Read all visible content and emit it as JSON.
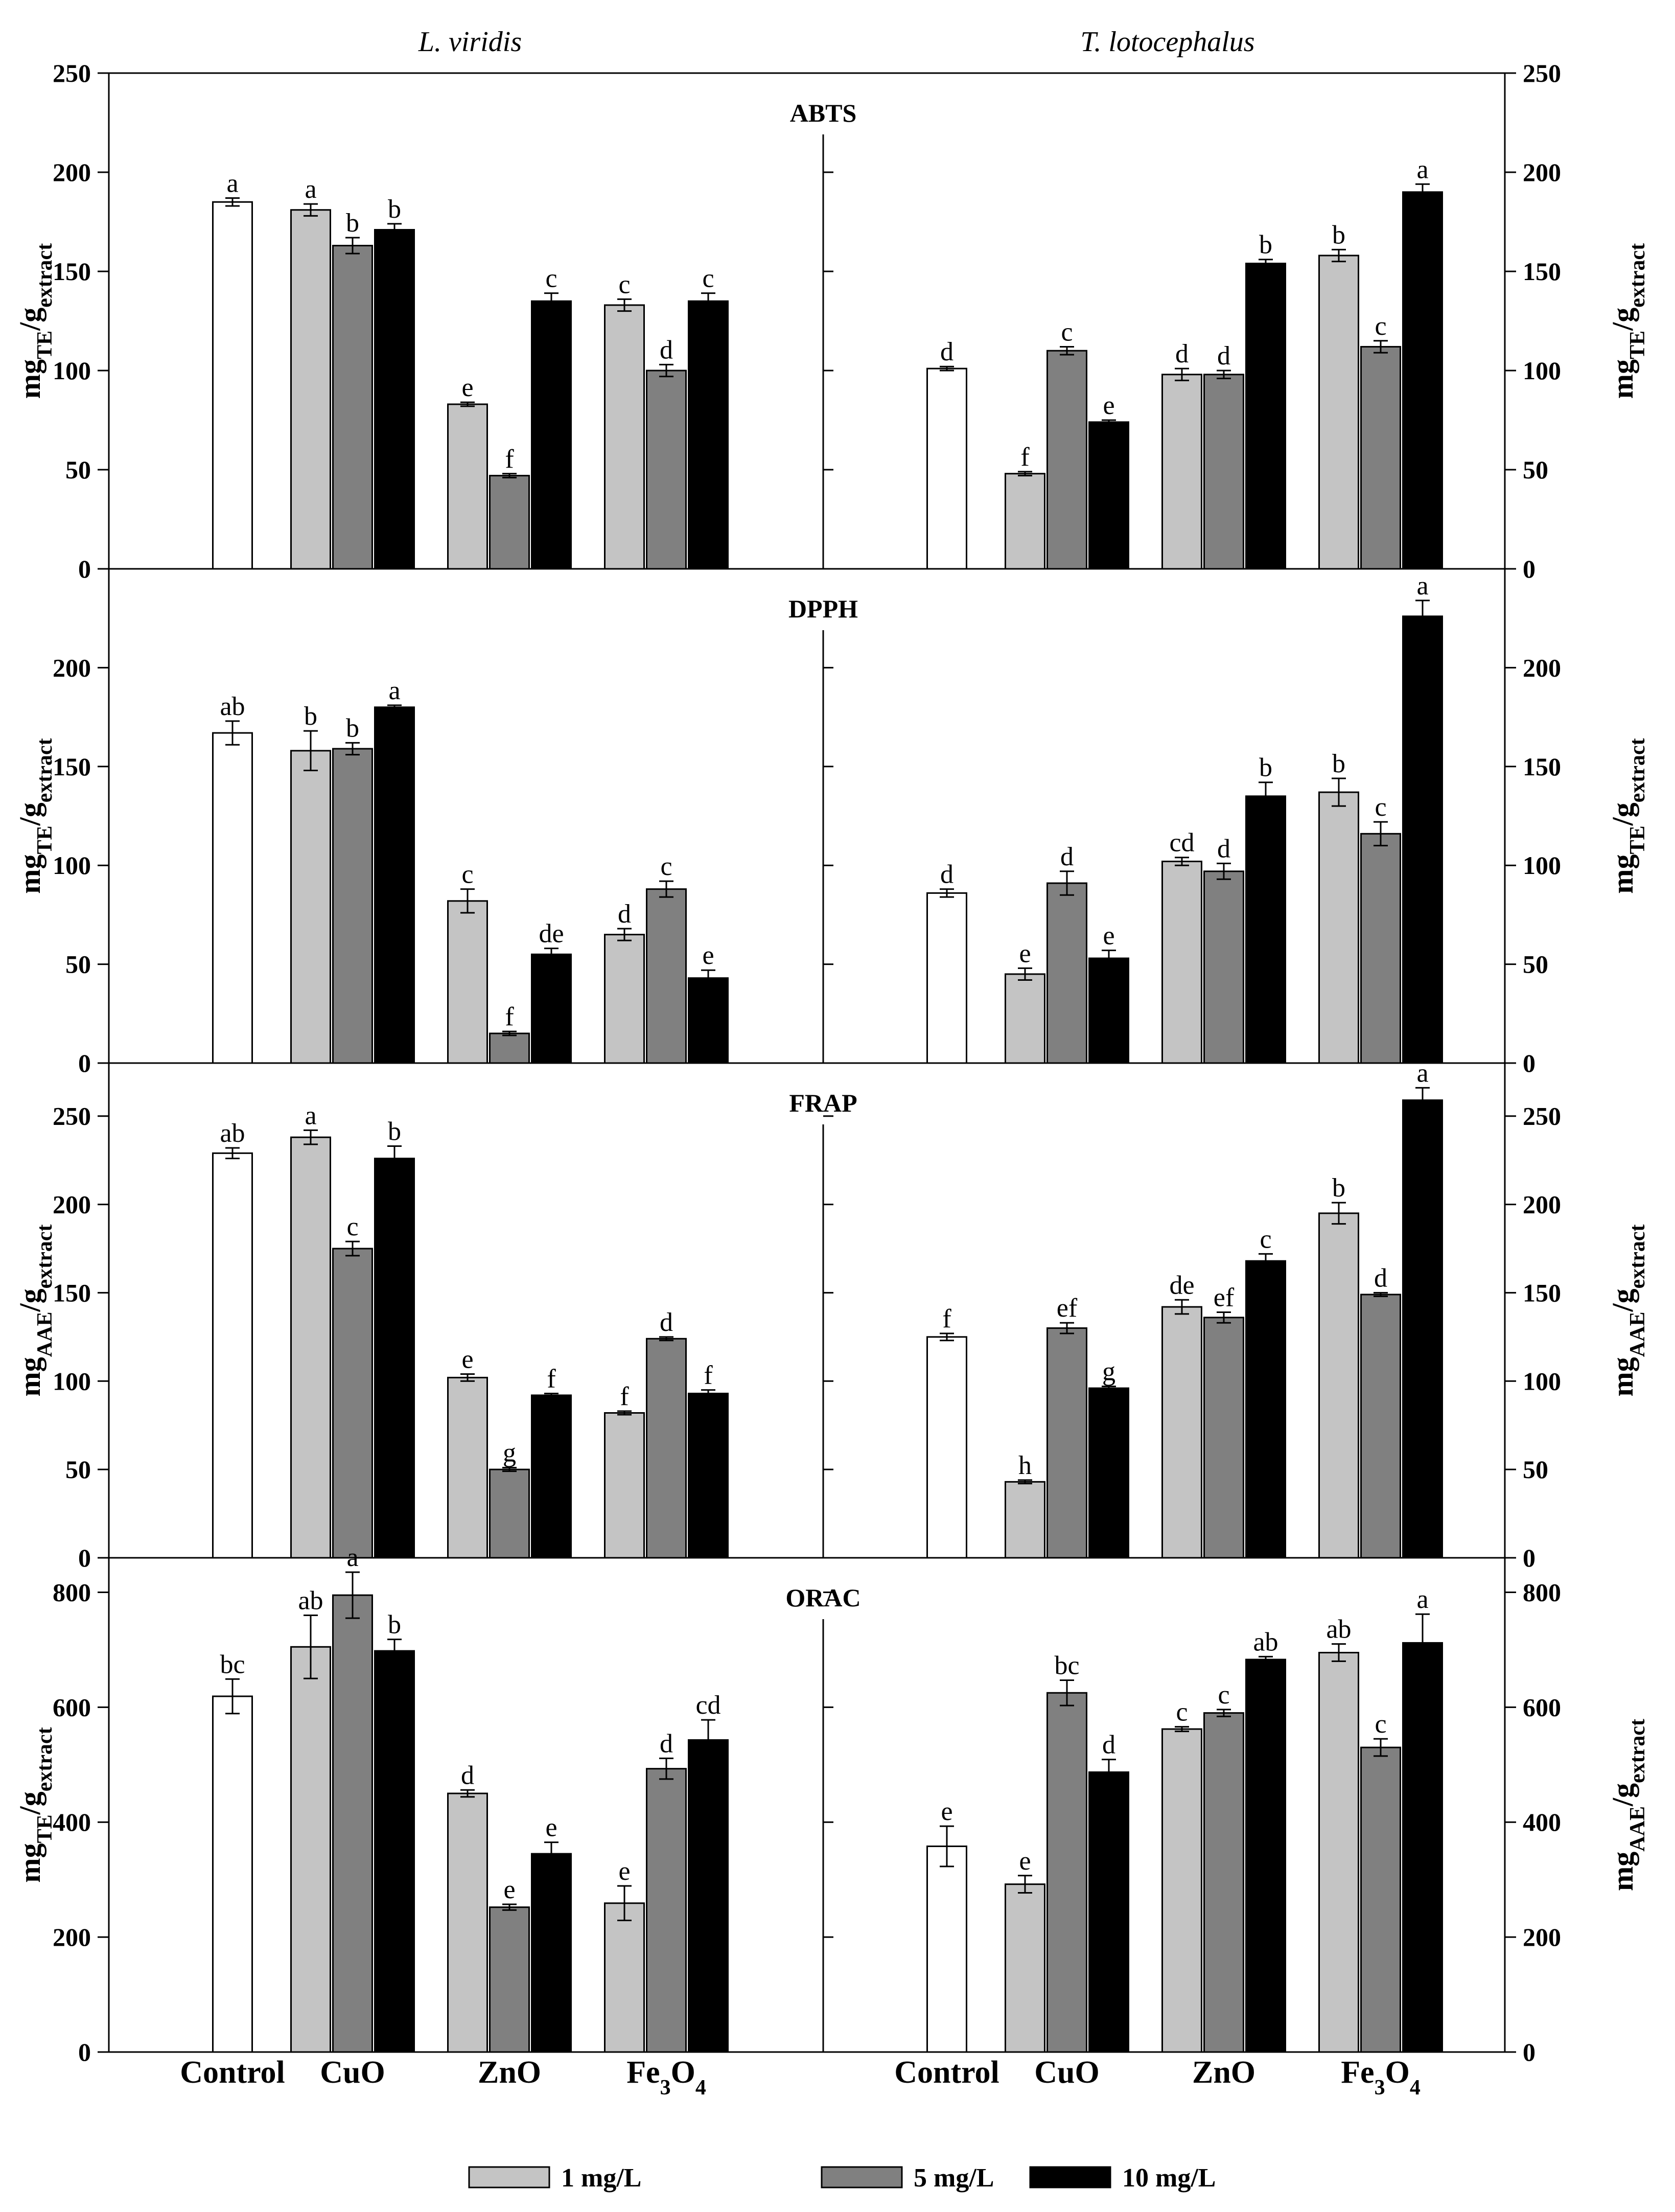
{
  "chart_data": {
    "type": "bar",
    "column_titles": [
      "L. viridis",
      "T. lotocephalus"
    ],
    "categories": [
      {
        "main": "Control",
        "sub": ""
      },
      {
        "main": "CuO",
        "sub": ""
      },
      {
        "main": "ZnO",
        "sub": ""
      },
      {
        "main": "Fe",
        "sub": "3",
        "tail": "O",
        "sub2": "4"
      }
    ],
    "legend": [
      {
        "name": "1 mg/L",
        "color": "#c4c4c4"
      },
      {
        "name": "5 mg/L",
        "color": "#808080"
      },
      {
        "name": "10 mg/L",
        "color": "#000000"
      }
    ],
    "control_color": "#ffffff",
    "panels": [
      {
        "title": "ABTS",
        "ylim": [
          0,
          250
        ],
        "yticks": [
          0,
          50,
          100,
          150,
          200,
          250
        ],
        "ylabel_left": {
          "main": "mg",
          "sub": "TE",
          "mid": "/g",
          "sub2": "extract"
        },
        "ylabel_right": {
          "main": "mg",
          "sub": "TE",
          "mid": "/g",
          "sub2": "extract"
        },
        "groups": [
          {
            "control": {
              "value": 185,
              "err": 2,
              "letter": "a"
            },
            "series": [
              {
                "values": [
                  181,
                  163,
                  171
                ],
                "errs": [
                  3,
                  4,
                  3
                ],
                "letters": [
                  "a",
                  "b",
                  "b"
                ]
              },
              {
                "values": [
                  83,
                  47,
                  135
                ],
                "errs": [
                  1,
                  1,
                  4
                ],
                "letters": [
                  "e",
                  "f",
                  "c"
                ]
              },
              {
                "values": [
                  133,
                  100,
                  135
                ],
                "errs": [
                  3,
                  3,
                  4
                ],
                "letters": [
                  "c",
                  "d",
                  "c"
                ]
              }
            ]
          },
          {
            "control": {
              "value": 101,
              "err": 1,
              "letter": "d"
            },
            "series": [
              {
                "values": [
                  48,
                  110,
                  74
                ],
                "errs": [
                  1,
                  2,
                  1
                ],
                "letters": [
                  "f",
                  "c",
                  "e"
                ]
              },
              {
                "values": [
                  98,
                  98,
                  154
                ],
                "errs": [
                  3,
                  2,
                  2
                ],
                "letters": [
                  "d",
                  "d",
                  "b"
                ]
              },
              {
                "values": [
                  158,
                  112,
                  190
                ],
                "errs": [
                  3,
                  3,
                  4
                ],
                "letters": [
                  "b",
                  "c",
                  "a"
                ]
              }
            ]
          }
        ]
      },
      {
        "title": "DPPH",
        "ylim": [
          0,
          250
        ],
        "yticks": [
          0,
          50,
          100,
          150,
          200
        ],
        "ylabel_left": {
          "main": "mg",
          "sub": "TE",
          "mid": "/g",
          "sub2": "extract"
        },
        "ylabel_right": {
          "main": "mg",
          "sub": "TE",
          "mid": "/g",
          "sub2": "extract"
        },
        "groups": [
          {
            "control": {
              "value": 167,
              "err": 6,
              "letter": "ab"
            },
            "series": [
              {
                "values": [
                  158,
                  159,
                  180
                ],
                "errs": [
                  10,
                  3,
                  1
                ],
                "letters": [
                  "b",
                  "b",
                  "a"
                ]
              },
              {
                "values": [
                  82,
                  15,
                  55
                ],
                "errs": [
                  6,
                  1,
                  3
                ],
                "letters": [
                  "c",
                  "f",
                  "de"
                ]
              },
              {
                "values": [
                  65,
                  88,
                  43
                ],
                "errs": [
                  3,
                  4,
                  4
                ],
                "letters": [
                  "d",
                  "c",
                  "e"
                ]
              }
            ]
          },
          {
            "control": {
              "value": 86,
              "err": 2,
              "letter": "d"
            },
            "series": [
              {
                "values": [
                  45,
                  91,
                  53
                ],
                "errs": [
                  3,
                  6,
                  4
                ],
                "letters": [
                  "e",
                  "d",
                  "e"
                ]
              },
              {
                "values": [
                  102,
                  97,
                  135
                ],
                "errs": [
                  2,
                  4,
                  7
                ],
                "letters": [
                  "cd",
                  "d",
                  "b"
                ]
              },
              {
                "values": [
                  137,
                  116,
                  226
                ],
                "errs": [
                  7,
                  6,
                  8
                ],
                "letters": [
                  "b",
                  "c",
                  "a"
                ]
              }
            ]
          }
        ]
      },
      {
        "title": "FRAP",
        "ylim": [
          0,
          280
        ],
        "yticks": [
          0,
          50,
          100,
          150,
          200,
          250
        ],
        "ylabel_left": {
          "main": "mg",
          "sub": "AAE",
          "mid": "/g",
          "sub2": "extract"
        },
        "ylabel_right": {
          "main": "mg",
          "sub": "AAE",
          "mid": "/g",
          "sub2": "extract"
        },
        "groups": [
          {
            "control": {
              "value": 229,
              "err": 3,
              "letter": "ab"
            },
            "series": [
              {
                "values": [
                  238,
                  175,
                  226
                ],
                "errs": [
                  4,
                  4,
                  7
                ],
                "letters": [
                  "a",
                  "c",
                  "b"
                ]
              },
              {
                "values": [
                  102,
                  50,
                  92
                ],
                "errs": [
                  2,
                  1,
                  1
                ],
                "letters": [
                  "e",
                  "g",
                  "f"
                ]
              },
              {
                "values": [
                  82,
                  124,
                  93
                ],
                "errs": [
                  1,
                  1,
                  2
                ],
                "letters": [
                  "f",
                  "d",
                  "f"
                ]
              }
            ]
          },
          {
            "control": {
              "value": 125,
              "err": 2,
              "letter": "f"
            },
            "series": [
              {
                "values": [
                  43,
                  130,
                  96
                ],
                "errs": [
                  1,
                  3,
                  1
                ],
                "letters": [
                  "h",
                  "ef",
                  "g"
                ]
              },
              {
                "values": [
                  142,
                  136,
                  168
                ],
                "errs": [
                  4,
                  3,
                  4
                ],
                "letters": [
                  "de",
                  "ef",
                  "c"
                ]
              },
              {
                "values": [
                  195,
                  149,
                  259
                ],
                "errs": [
                  6,
                  1,
                  7
                ],
                "letters": [
                  "b",
                  "d",
                  "a"
                ]
              }
            ]
          }
        ]
      },
      {
        "title": "ORAC",
        "ylim": [
          0,
          860
        ],
        "yticks": [
          0,
          200,
          400,
          600,
          800
        ],
        "ylabel_left": {
          "main": "mg",
          "sub": "TE",
          "mid": "/g",
          "sub2": "extract"
        },
        "ylabel_right": {
          "main": "mg",
          "sub": "AAE",
          "mid": "/g",
          "sub2": "extract"
        },
        "groups": [
          {
            "control": {
              "value": 619,
              "err": 30,
              "letter": "bc"
            },
            "series": [
              {
                "values": [
                  705,
                  795,
                  698
                ],
                "errs": [
                  55,
                  40,
                  20
                ],
                "letters": [
                  "ab",
                  "a",
                  "b"
                ]
              },
              {
                "values": [
                  450,
                  252,
                  345
                ],
                "errs": [
                  6,
                  5,
                  20
                ],
                "letters": [
                  "d",
                  "e",
                  "e"
                ]
              },
              {
                "values": [
                  259,
                  493,
                  543
                ],
                "errs": [
                  30,
                  18,
                  35
                ],
                "letters": [
                  "e",
                  "d",
                  "cd"
                ]
              }
            ]
          },
          {
            "control": {
              "value": 358,
              "err": 35,
              "letter": "e"
            },
            "series": [
              {
                "values": [
                  292,
                  625,
                  487
                ],
                "errs": [
                  15,
                  22,
                  22
                ],
                "letters": [
                  "e",
                  "bc",
                  "d"
                ]
              },
              {
                "values": [
                  562,
                  590,
                  683
                ],
                "errs": [
                  4,
                  6,
                  5
                ],
                "letters": [
                  "c",
                  "c",
                  "ab"
                ]
              },
              {
                "values": [
                  695,
                  530,
                  712
                ],
                "errs": [
                  15,
                  15,
                  50
                ],
                "letters": [
                  "ab",
                  "c",
                  "a"
                ]
              }
            ]
          }
        ]
      }
    ]
  }
}
